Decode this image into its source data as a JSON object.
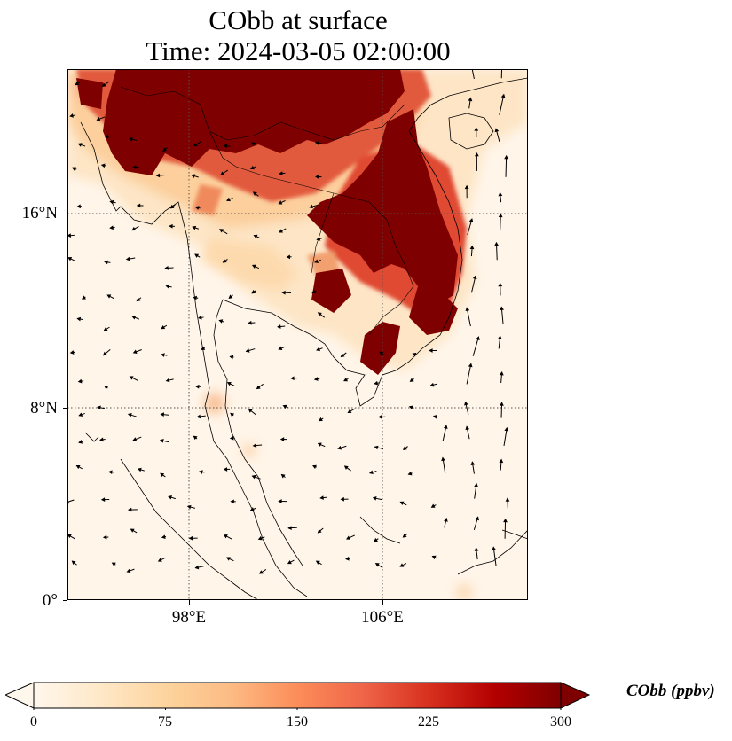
{
  "title": {
    "line1": "CObb at surface",
    "line2": "Time: 2024-03-05 02:00:00"
  },
  "axes": {
    "lat_ticks": [
      "16°N",
      "8°N",
      "0°"
    ],
    "lon_ticks": [
      "98°E",
      "106°E"
    ],
    "extent": {
      "lon_min": 93,
      "lon_max": 112,
      "lat_min": 0,
      "lat_max": 22
    },
    "gridlines": "dotted"
  },
  "colorbar": {
    "label": "CObb (ppbv)",
    "ticks": [
      "0",
      "75",
      "150",
      "225",
      "300"
    ],
    "min": 0,
    "max": 300,
    "extend": "both",
    "cmap": "OrRd",
    "colors": [
      "#fff7ec",
      "#fee8c8",
      "#fdd49e",
      "#fdbb84",
      "#fc8d59",
      "#ef6548",
      "#d7301f",
      "#b30000",
      "#7f0000"
    ]
  },
  "map": {
    "high_concentration_color": "#7f0000",
    "background_color": "#fff5e9",
    "coastline_color": "#000000",
    "wind_vectors": "black arrows"
  }
}
